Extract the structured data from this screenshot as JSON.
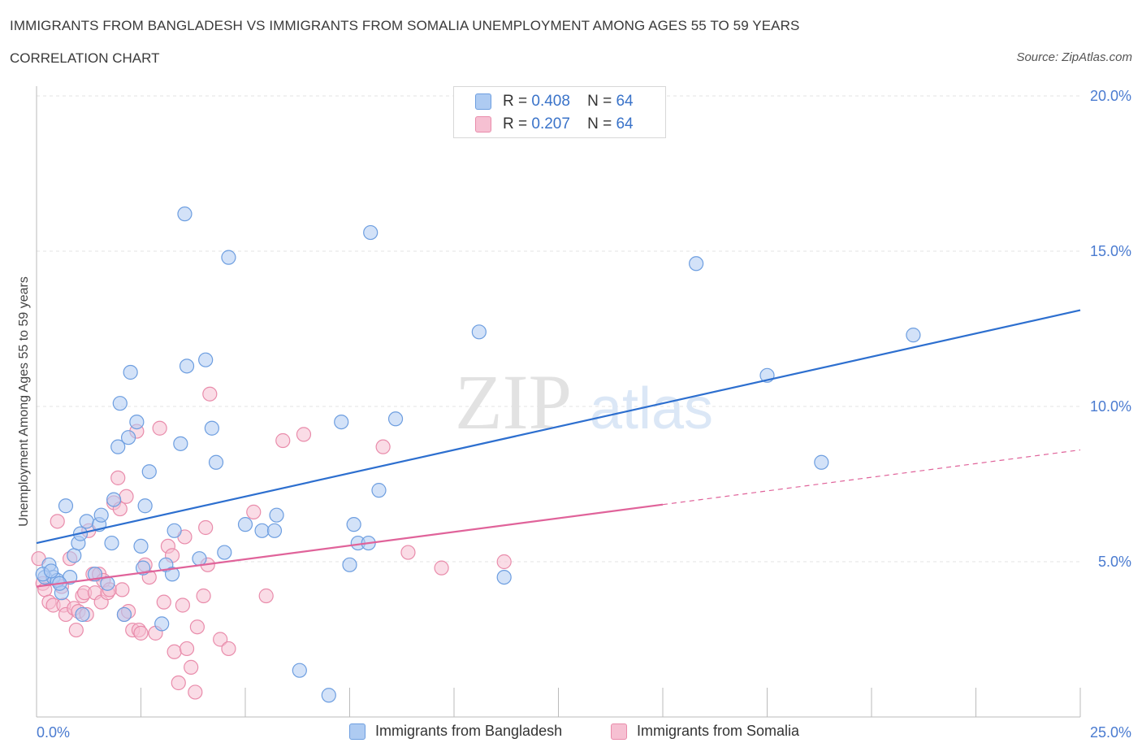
{
  "title": "IMMIGRANTS FROM BANGLADESH VS IMMIGRANTS FROM SOMALIA UNEMPLOYMENT AMONG AGES 55 TO 59 YEARS",
  "subtitle": "CORRELATION CHART",
  "source": "Source: ZipAtlas.com",
  "watermark": {
    "zip": "ZIP",
    "atlas": "atlas"
  },
  "legend": {
    "rows": [
      {
        "r_label": "R =",
        "r_value": "0.408",
        "n_label": "N =",
        "n_value": "64"
      },
      {
        "r_label": "R =",
        "r_value": "0.207",
        "n_label": "N =",
        "n_value": "64"
      }
    ]
  },
  "bottom_legend": [
    "Immigrants from Bangladesh",
    "Immigrants from Somalia"
  ],
  "colors": {
    "bangladesh_fill": "#aecbf2",
    "bangladesh_stroke": "#6d9ee0",
    "bangladesh_line": "#2d6fcf",
    "somalia_fill": "#f6c0d2",
    "somalia_stroke": "#e98cab",
    "somalia_line": "#e0639a",
    "tick_text": "#4a7bd0",
    "grid": "#e3e3e3"
  },
  "chart_data": {
    "type": "scatter",
    "ylabel": "Unemployment Among Ages 55 to 59 years",
    "xlim": [
      0,
      25
    ],
    "ylim": [
      0,
      20
    ],
    "x_tick_labels": [
      "0.0%",
      "25.0%"
    ],
    "y_ticks": [
      5,
      10,
      15,
      20
    ],
    "y_tick_labels": [
      "5.0%",
      "10.0%",
      "15.0%",
      "20.0%"
    ],
    "grid": true,
    "series": [
      {
        "name": "Immigrants from Bangladesh",
        "trend": {
          "x": [
            0,
            25
          ],
          "y": [
            5.6,
            13.1
          ],
          "dashed_from": null
        },
        "points": [
          [
            0.2,
            4.5
          ],
          [
            0.3,
            4.9
          ],
          [
            0.4,
            4.5
          ],
          [
            0.5,
            4.4
          ],
          [
            0.6,
            4.0
          ],
          [
            0.7,
            6.8
          ],
          [
            0.8,
            4.5
          ],
          [
            0.9,
            5.2
          ],
          [
            1.0,
            5.6
          ],
          [
            1.05,
            5.9
          ],
          [
            1.1,
            3.3
          ],
          [
            1.2,
            6.3
          ],
          [
            1.4,
            4.6
          ],
          [
            1.5,
            6.2
          ],
          [
            1.55,
            6.5
          ],
          [
            1.7,
            4.3
          ],
          [
            1.8,
            5.6
          ],
          [
            1.85,
            7.0
          ],
          [
            1.95,
            8.7
          ],
          [
            2.0,
            10.1
          ],
          [
            2.1,
            3.3
          ],
          [
            2.2,
            9.0
          ],
          [
            2.25,
            11.1
          ],
          [
            2.4,
            9.5
          ],
          [
            2.5,
            5.5
          ],
          [
            2.55,
            4.8
          ],
          [
            2.6,
            6.8
          ],
          [
            2.7,
            7.9
          ],
          [
            3.0,
            3.0
          ],
          [
            3.1,
            4.9
          ],
          [
            3.25,
            4.6
          ],
          [
            3.3,
            6.0
          ],
          [
            3.45,
            8.8
          ],
          [
            3.55,
            16.2
          ],
          [
            3.6,
            11.3
          ],
          [
            3.9,
            5.1
          ],
          [
            4.05,
            11.5
          ],
          [
            4.2,
            9.3
          ],
          [
            4.3,
            8.2
          ],
          [
            4.5,
            5.3
          ],
          [
            4.6,
            14.8
          ],
          [
            5.0,
            6.2
          ],
          [
            5.4,
            6.0
          ],
          [
            5.7,
            6.0
          ],
          [
            5.75,
            6.5
          ],
          [
            6.3,
            1.5
          ],
          [
            7.0,
            0.7
          ],
          [
            7.3,
            9.5
          ],
          [
            7.5,
            4.9
          ],
          [
            7.6,
            6.2
          ],
          [
            7.7,
            5.6
          ],
          [
            7.95,
            5.6
          ],
          [
            8.0,
            15.6
          ],
          [
            8.2,
            7.3
          ],
          [
            8.6,
            9.6
          ],
          [
            10.6,
            12.4
          ],
          [
            11.2,
            4.5
          ],
          [
            15.8,
            14.6
          ],
          [
            17.5,
            11.0
          ],
          [
            18.8,
            8.2
          ],
          [
            21.0,
            12.3
          ],
          [
            0.15,
            4.6
          ],
          [
            0.35,
            4.7
          ],
          [
            0.55,
            4.3
          ]
        ]
      },
      {
        "name": "Immigrants from Somalia",
        "trend": {
          "x": [
            0,
            25
          ],
          "y": [
            4.2,
            8.6
          ],
          "dashed_from": 15
        },
        "points": [
          [
            0.05,
            5.1
          ],
          [
            0.15,
            4.3
          ],
          [
            0.2,
            4.1
          ],
          [
            0.3,
            3.7
          ],
          [
            0.4,
            3.6
          ],
          [
            0.5,
            6.3
          ],
          [
            0.6,
            4.2
          ],
          [
            0.65,
            3.6
          ],
          [
            0.7,
            3.3
          ],
          [
            0.8,
            5.1
          ],
          [
            0.9,
            3.5
          ],
          [
            0.95,
            2.8
          ],
          [
            1.0,
            3.4
          ],
          [
            1.1,
            3.9
          ],
          [
            1.15,
            4.0
          ],
          [
            1.2,
            3.3
          ],
          [
            1.25,
            6.0
          ],
          [
            1.35,
            4.6
          ],
          [
            1.4,
            4.0
          ],
          [
            1.5,
            4.6
          ],
          [
            1.55,
            3.7
          ],
          [
            1.6,
            4.4
          ],
          [
            1.7,
            4.0
          ],
          [
            1.75,
            4.1
          ],
          [
            1.85,
            6.9
          ],
          [
            1.95,
            7.7
          ],
          [
            2.0,
            6.7
          ],
          [
            2.05,
            4.1
          ],
          [
            2.1,
            3.3
          ],
          [
            2.15,
            7.1
          ],
          [
            2.2,
            3.4
          ],
          [
            2.3,
            2.8
          ],
          [
            2.4,
            9.2
          ],
          [
            2.45,
            2.8
          ],
          [
            2.5,
            2.7
          ],
          [
            2.6,
            4.9
          ],
          [
            2.7,
            4.5
          ],
          [
            2.85,
            2.7
          ],
          [
            2.95,
            9.3
          ],
          [
            3.05,
            3.7
          ],
          [
            3.15,
            5.5
          ],
          [
            3.25,
            5.2
          ],
          [
            3.3,
            2.1
          ],
          [
            3.4,
            1.1
          ],
          [
            3.5,
            3.6
          ],
          [
            3.55,
            5.8
          ],
          [
            3.6,
            2.2
          ],
          [
            3.7,
            1.6
          ],
          [
            3.8,
            0.8
          ],
          [
            3.85,
            2.9
          ],
          [
            4.0,
            3.9
          ],
          [
            4.05,
            6.1
          ],
          [
            4.1,
            4.9
          ],
          [
            4.15,
            10.4
          ],
          [
            4.4,
            2.5
          ],
          [
            4.6,
            2.2
          ],
          [
            5.2,
            6.6
          ],
          [
            5.5,
            3.9
          ],
          [
            5.9,
            8.9
          ],
          [
            6.4,
            9.1
          ],
          [
            8.3,
            8.7
          ],
          [
            8.9,
            5.3
          ],
          [
            9.7,
            4.8
          ],
          [
            11.2,
            5.0
          ]
        ]
      }
    ]
  }
}
